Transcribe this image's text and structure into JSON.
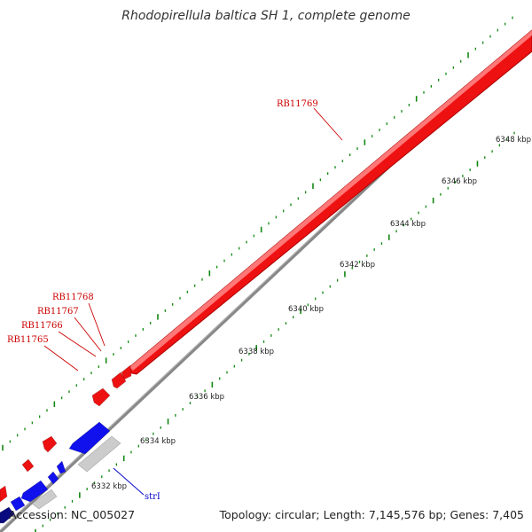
{
  "title": "Rhodopirellula baltica SH 1, complete genome",
  "footer": {
    "accession": "Accession: NC_005027",
    "summary": "Topology: circular; Length: 7,145,576 bp; Genes: 7,405"
  },
  "colors": {
    "forward_gene": "#ee1111",
    "reverse_gene": "#1111ee",
    "reverse_gene_dark": "#0a0a80",
    "pseudo_gene": "#cccccc",
    "backbone": "#888888",
    "tick": "#118811",
    "label": "#cc0000",
    "label_blue": "#0000cc"
  },
  "scale": {
    "unit": "kbp",
    "labels": [
      "6332 kbp",
      "6334 kbp",
      "6336 kbp",
      "6338 kbp",
      "6340 kbp",
      "6342 kbp",
      "6344 kbp",
      "6346 kbp",
      "6348 kbp"
    ]
  },
  "gene_labels": [
    {
      "text": "RB11769",
      "color": "label"
    },
    {
      "text": "RB11768",
      "color": "label"
    },
    {
      "text": "RB11767",
      "color": "label"
    },
    {
      "text": "RB11766",
      "color": "label"
    },
    {
      "text": "RB11765",
      "color": "label"
    },
    {
      "text": "strI",
      "color": "label_blue"
    }
  ]
}
